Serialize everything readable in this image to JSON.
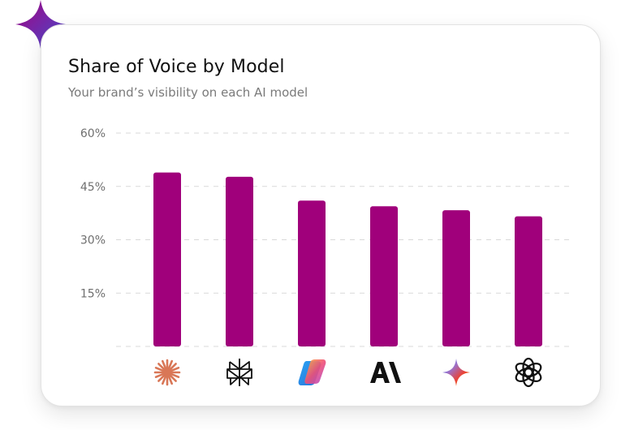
{
  "header": {
    "title": "Share of Voice by Model",
    "subtitle": "Your brand’s visibility on each AI model"
  },
  "colors": {
    "bar": "#A0007B",
    "grid": "#d9d9d9",
    "tick_text": "#6f6f6f",
    "sparkle_from": "#a0007b",
    "sparkle_to": "#4a4fd6"
  },
  "chart_data": {
    "type": "bar",
    "title": "Share of Voice by Model",
    "subtitle": "Your brand’s visibility on each AI model",
    "xlabel": "",
    "ylabel": "",
    "ylim": [
      0,
      60
    ],
    "yticks": [
      15,
      30,
      45,
      60
    ],
    "ytick_labels": [
      "15%",
      "30%",
      "45%",
      "60%"
    ],
    "grid": true,
    "categories": [
      "claude-icon",
      "perplexity-icon",
      "copilot-icon",
      "anthropic-icon",
      "gemini-icon",
      "openai-icon"
    ],
    "values": [
      48.9,
      47.7,
      41.0,
      39.4,
      38.3,
      36.6
    ]
  }
}
